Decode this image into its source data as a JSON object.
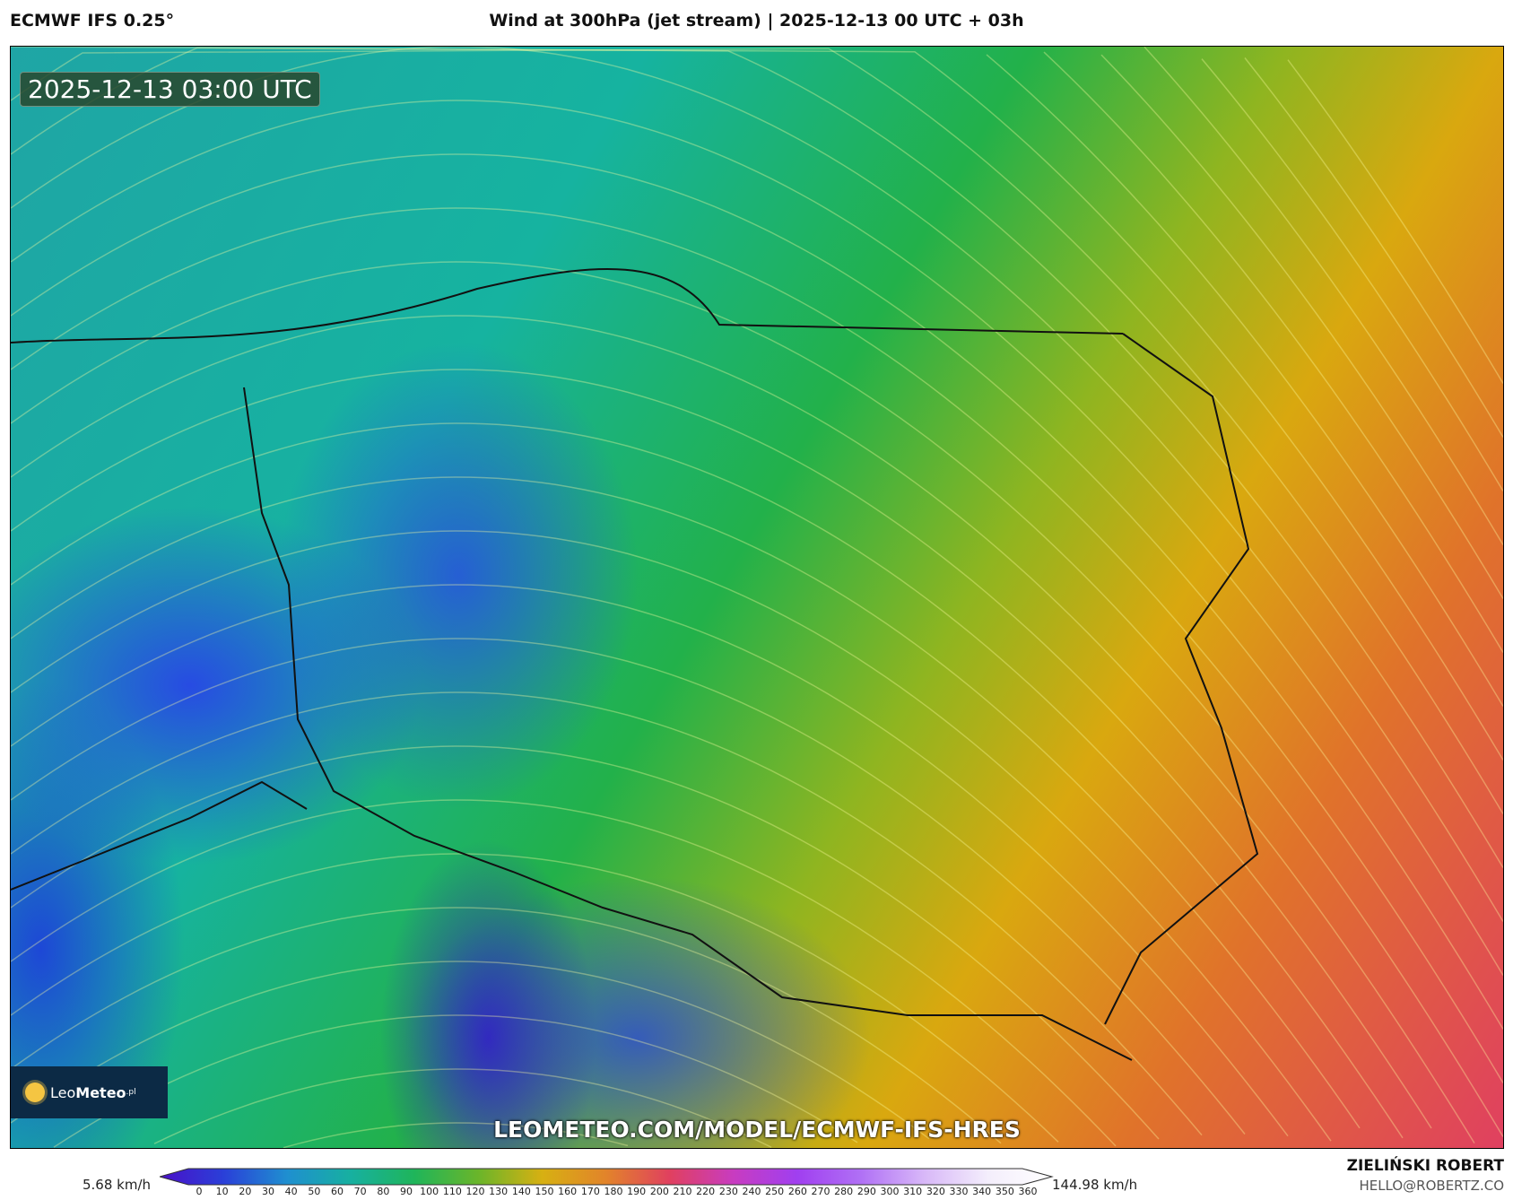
{
  "header": {
    "model": "ECMWF IFS 0.25°",
    "title": "Wind at 300hPa (jet stream) | 2025-12-13 00 UTC + 03h"
  },
  "map": {
    "timestamp": "2025-12-13 03:00 UTC",
    "logo_text_light": "Leo",
    "logo_text_bold": "Meteo",
    "logo_suffix": ".pl",
    "url": "LEOMETEO.COM/MODEL/ECMWF-IFS-HRES",
    "min_color": "#2a3fd8",
    "max_color": "#e0405f"
  },
  "colorbar": {
    "min_label": "5.68 km/h",
    "max_label": "144.98 km/h",
    "ticks": [
      "0",
      "10",
      "20",
      "30",
      "40",
      "50",
      "60",
      "70",
      "80",
      "90",
      "100",
      "110",
      "120",
      "130",
      "140",
      "150",
      "160",
      "170",
      "180",
      "190",
      "200",
      "210",
      "220",
      "230",
      "240",
      "250",
      "260",
      "270",
      "280",
      "290",
      "300",
      "310",
      "320",
      "330",
      "340",
      "350",
      "360"
    ],
    "stops": [
      "#4a10c8",
      "#2a3fd8",
      "#1f8fd0",
      "#17b0a0",
      "#1fb55a",
      "#6ab52a",
      "#d7b012",
      "#e2842a",
      "#e0405f",
      "#c83cc0",
      "#a03ff0",
      "#b070f5",
      "#d8b8f8",
      "#f4eefc",
      "#ffffff"
    ]
  },
  "credits": {
    "author": "ZIELIŃSKI ROBERT",
    "email": "HELLO@ROBERTZ.CO"
  }
}
